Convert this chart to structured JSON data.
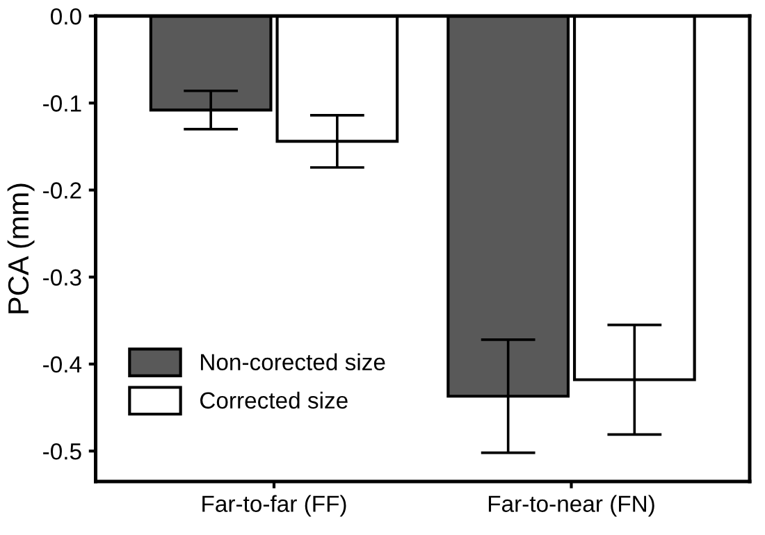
{
  "chart_data": {
    "type": "bar",
    "ylabel": "PCA (mm)",
    "categories": [
      "Far-to-far (FF)",
      "Far-to-near (FN)"
    ],
    "series": [
      {
        "name": "Non-corected size",
        "color": "#595959",
        "values": [
          -0.108,
          -0.437
        ],
        "errors": [
          0.022,
          0.065
        ]
      },
      {
        "name": "Corrected size",
        "color": "#ffffff",
        "values": [
          -0.144,
          -0.418
        ],
        "errors": [
          0.03,
          0.063
        ]
      }
    ],
    "ylim": [
      -0.535,
      0.0
    ],
    "yticks": [
      {
        "value": 0,
        "label": "0.0"
      },
      -0.1,
      -0.2,
      -0.3,
      -0.4,
      -0.5
    ],
    "grid": false,
    "legend": "bottom left"
  }
}
